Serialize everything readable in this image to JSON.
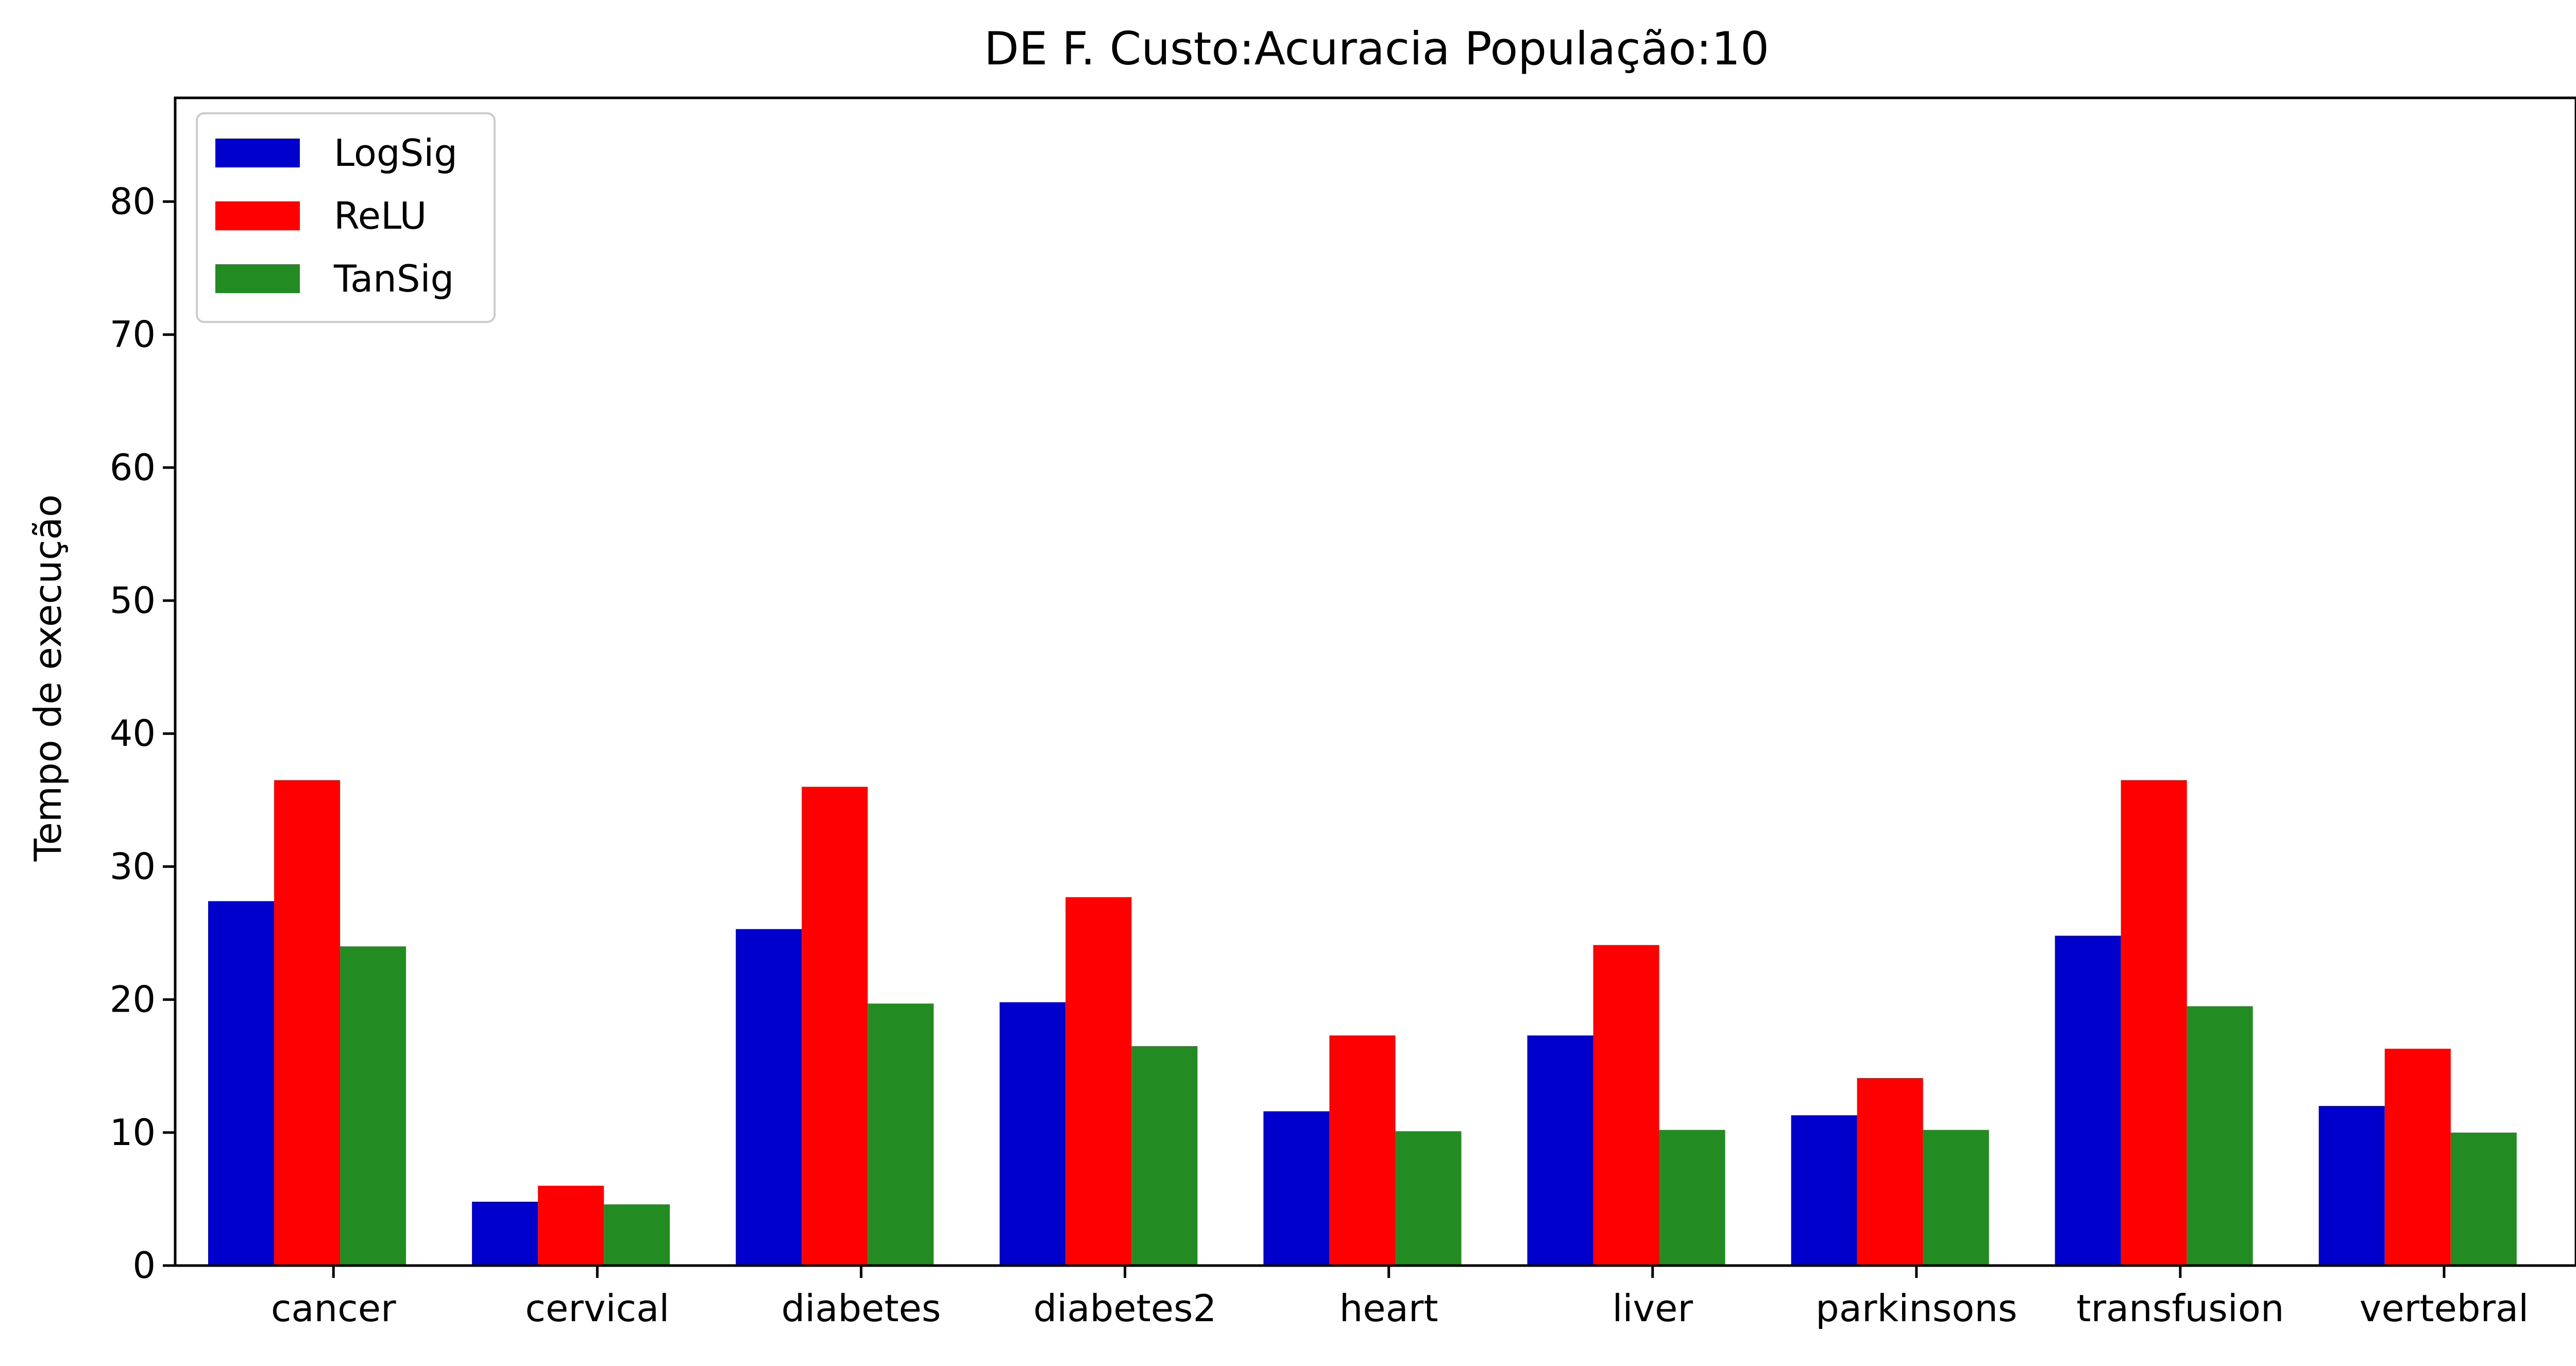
{
  "chart_data": {
    "type": "bar",
    "title": "DE F. Custo:Acuracia População:10",
    "xlabel": "",
    "ylabel": "Tempo de execução",
    "categories": [
      "cancer",
      "cervical",
      "diabetes",
      "diabetes2",
      "heart",
      "liver",
      "parkinsons",
      "transfusion",
      "vertebral"
    ],
    "series": [
      {
        "name": "LogSig",
        "color": "#0000cc",
        "values": [
          27.4,
          4.8,
          25.3,
          19.8,
          11.6,
          17.3,
          11.3,
          24.8,
          12.0
        ]
      },
      {
        "name": "ReLU",
        "color": "#ff0000",
        "values": [
          36.5,
          6.0,
          36.0,
          27.7,
          17.3,
          24.1,
          14.1,
          36.5,
          16.3
        ]
      },
      {
        "name": "TanSig",
        "color": "#228b22",
        "values": [
          24.0,
          4.6,
          19.7,
          16.5,
          10.1,
          10.2,
          10.2,
          19.5,
          10.0
        ]
      }
    ],
    "ylim": [
      0,
      87.8
    ],
    "yticks": [
      0,
      10,
      20,
      30,
      40,
      50,
      60,
      70,
      80
    ],
    "grid": false,
    "legend_position": "top-left"
  }
}
